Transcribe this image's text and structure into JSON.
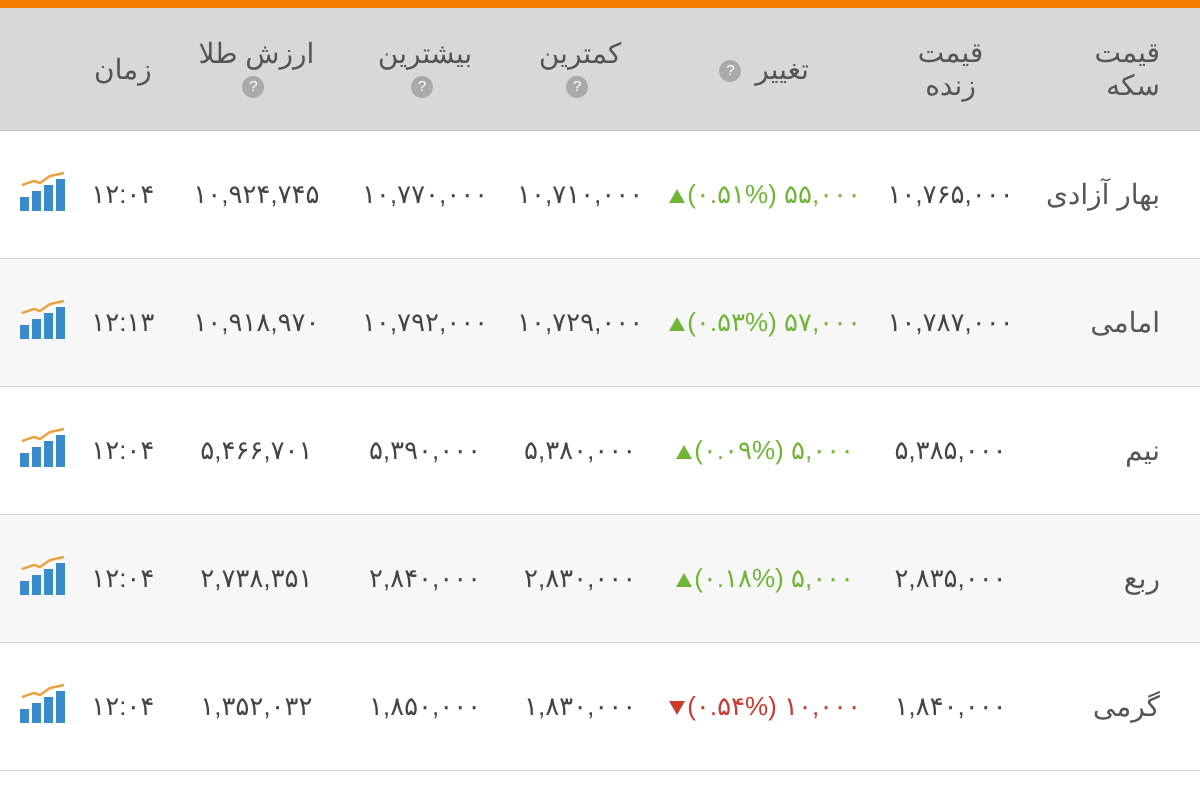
{
  "colors": {
    "accent": "#f57c00",
    "header_bg": "#d8d8d8",
    "row_alt": "#f7f7f7",
    "text": "#444",
    "header_text": "#555",
    "up": "#6fb536",
    "down": "#cc3a2e",
    "chart_bar": "#3a8bc9",
    "chart_line": "#e8a23d",
    "help_bg": "#aaa"
  },
  "headers": {
    "name": "قیمت سکه",
    "live_price": "قیمت زنده",
    "change": "تغییر",
    "low": "کمترین",
    "high": "بیشترین",
    "gold_value": "ارزش طلا",
    "time": "زمان"
  },
  "rows": [
    {
      "name": "بهار آزادی",
      "live_price": "۱۰,۷۶۵,۰۰۰",
      "change_amount": "۵۵,۰۰۰",
      "change_pct": "۰.۵۱%",
      "direction": "up",
      "low": "۱۰,۷۱۰,۰۰۰",
      "high": "۱۰,۷۷۰,۰۰۰",
      "gold_value": "۱۰,۹۲۴,۷۴۵",
      "time": "۱۲:۰۴"
    },
    {
      "name": "امامی",
      "live_price": "۱۰,۷۸۷,۰۰۰",
      "change_amount": "۵۷,۰۰۰",
      "change_pct": "۰.۵۳%",
      "direction": "up",
      "low": "۱۰,۷۲۹,۰۰۰",
      "high": "۱۰,۷۹۲,۰۰۰",
      "gold_value": "۱۰,۹۱۸,۹۷۰",
      "time": "۱۲:۱۳"
    },
    {
      "name": "نیم",
      "live_price": "۵,۳۸۵,۰۰۰",
      "change_amount": "۵,۰۰۰",
      "change_pct": "۰.۰۹%",
      "direction": "up",
      "low": "۵,۳۸۰,۰۰۰",
      "high": "۵,۳۹۰,۰۰۰",
      "gold_value": "۵,۴۶۶,۷۰۱",
      "time": "۱۲:۰۴"
    },
    {
      "name": "ربع",
      "live_price": "۲,۸۳۵,۰۰۰",
      "change_amount": "۵,۰۰۰",
      "change_pct": "۰.۱۸%",
      "direction": "up",
      "low": "۲,۸۳۰,۰۰۰",
      "high": "۲,۸۴۰,۰۰۰",
      "gold_value": "۲,۷۳۸,۳۵۱",
      "time": "۱۲:۰۴"
    },
    {
      "name": "گرمی",
      "live_price": "۱,۸۴۰,۰۰۰",
      "change_amount": "۱۰,۰۰۰",
      "change_pct": "۰.۵۴%",
      "direction": "down",
      "low": "۱,۸۳۰,۰۰۰",
      "high": "۱,۸۵۰,۰۰۰",
      "gold_value": "۱,۳۵۲,۰۳۲",
      "time": "۱۲:۰۴"
    }
  ]
}
